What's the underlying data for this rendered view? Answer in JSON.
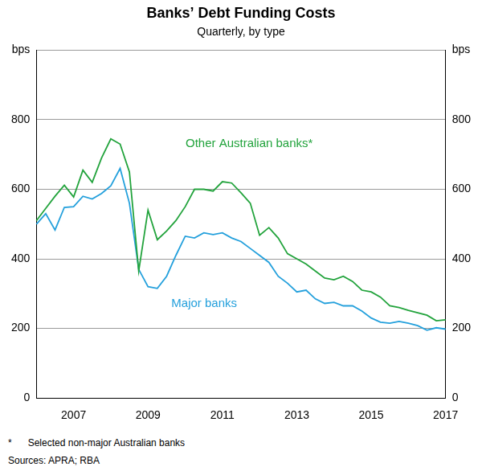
{
  "chart_data": {
    "type": "line",
    "title": "Banks’ Debt Funding Costs",
    "subtitle": "Quarterly, by type",
    "categories": [
      null,
      null,
      null,
      null,
      "2007",
      null,
      null,
      null,
      null,
      null,
      null,
      null,
      "2009",
      null,
      null,
      null,
      null,
      null,
      null,
      null,
      "2011",
      null,
      null,
      null,
      null,
      null,
      null,
      null,
      "2013",
      null,
      null,
      null,
      null,
      null,
      null,
      null,
      "2015",
      null,
      null,
      null,
      null,
      null,
      null,
      null,
      "2017"
    ],
    "series": [
      {
        "name": "Other Australian banks*",
        "color": "#22a33c",
        "values": [
          510,
          545,
          580,
          612,
          578,
          655,
          620,
          690,
          745,
          730,
          650,
          365,
          540,
          455,
          480,
          510,
          550,
          600,
          600,
          595,
          622,
          618,
          590,
          560,
          468,
          490,
          460,
          415,
          400,
          385,
          365,
          345,
          340,
          350,
          335,
          310,
          305,
          290,
          265,
          260,
          252,
          245,
          238,
          222,
          225
        ]
      },
      {
        "name": "Major banks",
        "color": "#24a0dc",
        "values": [
          500,
          530,
          483,
          548,
          550,
          580,
          572,
          588,
          610,
          660,
          560,
          370,
          320,
          315,
          350,
          410,
          465,
          460,
          475,
          470,
          475,
          460,
          450,
          430,
          410,
          390,
          350,
          330,
          305,
          310,
          285,
          272,
          275,
          265,
          265,
          250,
          230,
          218,
          215,
          220,
          215,
          208,
          195,
          202,
          198
        ]
      }
    ],
    "ylim": [
      0,
      1000
    ],
    "yticks": [
      0,
      200,
      400,
      600,
      800,
      {
        "value": 1000,
        "label": "bps"
      }
    ],
    "y2lim": [
      0,
      1000
    ],
    "y2ticks": [
      0,
      200,
      400,
      600,
      800,
      {
        "value": 1000,
        "label": "bps"
      }
    ],
    "grid": true,
    "notes": [
      "*      Selected non-major Australian banks",
      "Sources: APRA; RBA"
    ]
  }
}
